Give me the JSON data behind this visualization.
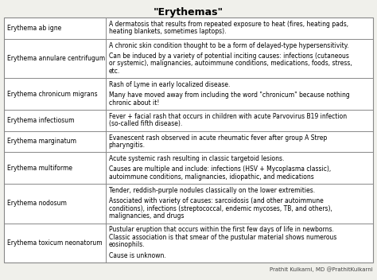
{
  "title": "\"Erythemas\"",
  "footer": "Prathit Kulkarni, MD @PrathitKulkarni",
  "bg_color": "#f0f0eb",
  "border_color": "#888888",
  "title_fontsize": 9,
  "cell_fontsize": 5.5,
  "col_split": 0.275,
  "rows": [
    {
      "term": "Erythema ab igne",
      "desc_lines": [
        "A dermatosis that results from repeated exposure to heat (fires, heating pads,",
        "heating blankets, sometimes laptops)."
      ]
    },
    {
      "term": "Erythema annulare centrifugum",
      "desc_lines": [
        "A chronic skin condition thought to be a form of delayed-type hypersensitivity.",
        "",
        "Can be induced by a variety of potential inciting causes: infections (cutaneous",
        "or systemic), malignancies, autoimmune conditions, medications, foods, stress,",
        "etc."
      ]
    },
    {
      "term": "Erythema chronicum migrans",
      "desc_lines": [
        "Rash of Lyme in early localized disease.",
        "",
        "Many have moved away from including the word \"chronicum\" because nothing",
        "chronic about it!"
      ]
    },
    {
      "term": "Erythema infectiosum",
      "desc_lines": [
        "Fever + facial rash that occurs in children with acute Parvovirus B19 infection",
        "(so-called fifth disease)."
      ]
    },
    {
      "term": "Erythema marginatum",
      "desc_lines": [
        "Evanescent rash observed in acute rheumatic fever after group A Strep",
        "pharyngitis."
      ]
    },
    {
      "term": "Erythema multiforme",
      "desc_lines": [
        "Acute systemic rash resulting in classic targetoid lesions.",
        "",
        "Causes are multiple and include: infections (HSV + Mycoplasma classic),",
        "autoimmune conditions, malignancies, idiopathic, and medications"
      ]
    },
    {
      "term": "Erythema nodosum",
      "desc_lines": [
        "Tender, reddish-purple nodules classically on the lower extremities.",
        "",
        "Associated with variety of causes: sarcoidosis (and other autoimmune",
        "conditions), infections (streptococcal, endemic mycoses, TB, and others),",
        "malignancies, and drugs"
      ]
    },
    {
      "term": "Erythema toxicum neonatorum",
      "desc_lines": [
        "Pustular eruption that occurs within the first few days of life in newborns.",
        "Classic association is that smear of the pustular material shows numerous",
        "eosinophils.",
        "",
        "Cause is unknown."
      ]
    }
  ]
}
